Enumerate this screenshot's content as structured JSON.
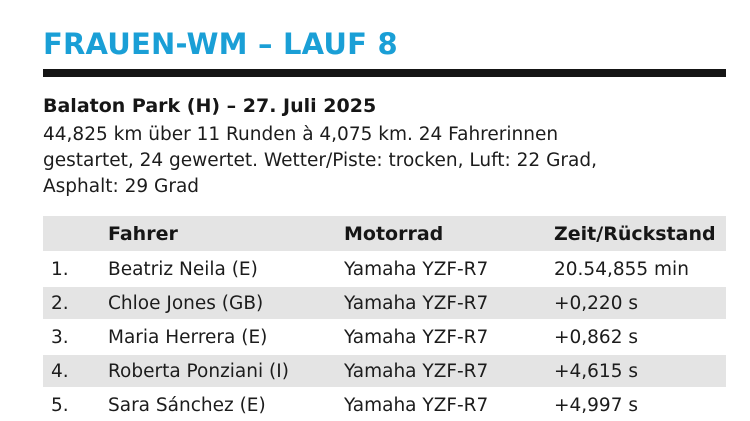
{
  "header": {
    "title": "FRAUEN-WM – LAUF 8",
    "accent_color": "#1a9fd6"
  },
  "event": {
    "title": "Balaton Park (H) – 27. Juli 2025",
    "description_lines": [
      "44,825 km über 11 Runden à 4,075 km. 24 Fahrerinnen",
      "gestartet, 24 gewertet. Wetter/Piste: trocken, Luft: 22 Grad,",
      "Asphalt: 29 Grad"
    ]
  },
  "results": {
    "columns": {
      "position": "",
      "driver": "Fahrer",
      "bike": "Motorrad",
      "time": "Zeit/Rückstand"
    },
    "rows": [
      {
        "position": "1.",
        "driver": "Beatriz Neila (E)",
        "bike": "Yamaha YZF-R7",
        "time": "20.54,855 min"
      },
      {
        "position": "2.",
        "driver": "Chloe Jones (GB)",
        "bike": "Yamaha YZF-R7",
        "time": "+0,220 s"
      },
      {
        "position": "3.",
        "driver": "Maria Herrera (E)",
        "bike": "Yamaha YZF-R7",
        "time": "+0,862 s"
      },
      {
        "position": "4.",
        "driver": "Roberta Ponziani (I)",
        "bike": "Yamaha YZF-R7",
        "time": "+4,615 s"
      },
      {
        "position": "5.",
        "driver": "Sara Sánchez (E)",
        "bike": "Yamaha YZF-R7",
        "time": "+4,997 s"
      }
    ]
  }
}
